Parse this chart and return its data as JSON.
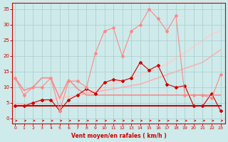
{
  "bg_color": "#ceeaea",
  "grid_color": "#aacccc",
  "xlabel": "Vent moyen/en rafales ( km/h )",
  "xlabel_color": "#cc0000",
  "ylabel_color": "#cc0000",
  "x_ticks": [
    0,
    1,
    2,
    3,
    4,
    5,
    6,
    7,
    8,
    9,
    10,
    11,
    12,
    13,
    14,
    15,
    16,
    17,
    18,
    19,
    20,
    21,
    22,
    23
  ],
  "y_ticks": [
    0,
    5,
    10,
    15,
    20,
    25,
    30,
    35
  ],
  "xlim": [
    -0.3,
    23.5
  ],
  "ylim": [
    -1.5,
    37
  ],
  "lines": [
    {
      "x": [
        0,
        1,
        2,
        3,
        4,
        5,
        6,
        7,
        8,
        9,
        10,
        11,
        12,
        13,
        14,
        15,
        16,
        17,
        18,
        19,
        20,
        21,
        22,
        23
      ],
      "y": [
        4.5,
        4.5,
        5,
        5.5,
        6,
        6.5,
        7,
        7.5,
        8,
        8.5,
        9,
        9.5,
        10,
        10.5,
        11,
        12,
        13,
        14,
        15,
        16,
        17,
        18,
        20,
        22
      ],
      "color": "#ffb0b0",
      "lw": 1.2,
      "marker": null,
      "zorder": 1
    },
    {
      "x": [
        0,
        1,
        2,
        3,
        4,
        5,
        6,
        7,
        8,
        9,
        10,
        11,
        12,
        13,
        14,
        15,
        16,
        17,
        18,
        19,
        20,
        21,
        22,
        23
      ],
      "y": [
        4.5,
        4.5,
        5,
        5.5,
        6,
        6.5,
        7,
        7.5,
        8.5,
        9,
        10,
        11,
        12,
        13,
        14,
        15,
        16,
        17.5,
        19.5,
        21,
        23,
        25,
        27,
        28
      ],
      "color": "#ffcccc",
      "lw": 1.2,
      "marker": null,
      "zorder": 1
    },
    {
      "x": [
        0,
        1,
        2,
        3,
        4,
        5,
        6,
        7,
        8,
        9,
        10,
        11,
        12,
        13,
        14,
        15,
        16,
        17,
        18,
        19,
        20,
        21,
        22,
        23
      ],
      "y": [
        4,
        4,
        4,
        4,
        4,
        4,
        4,
        4,
        4,
        4,
        4,
        4,
        4,
        4,
        4,
        4,
        4,
        4,
        4,
        4,
        4,
        4,
        4,
        4
      ],
      "color": "#cc0000",
      "lw": 1.5,
      "marker": null,
      "zorder": 3
    },
    {
      "x": [
        0,
        1,
        2,
        3,
        4,
        5,
        6,
        7,
        8,
        9,
        10,
        11,
        12,
        13,
        14,
        15,
        16,
        17,
        18,
        19,
        20,
        21,
        22,
        23
      ],
      "y": [
        4,
        4,
        5,
        6,
        6,
        2.5,
        6,
        7.5,
        9.5,
        8,
        11.5,
        12.5,
        12,
        13,
        18,
        15.5,
        17,
        11,
        10,
        10.5,
        4,
        4,
        8,
        2.5
      ],
      "color": "#cc0000",
      "lw": 0.8,
      "marker": "D",
      "markersize": 2.0,
      "zorder": 4
    },
    {
      "x": [
        0,
        1,
        2,
        3,
        4,
        5,
        6,
        7,
        8,
        9,
        10,
        11,
        12,
        13,
        14,
        15,
        16,
        17,
        18,
        19,
        20,
        21,
        22,
        23
      ],
      "y": [
        13,
        9,
        10,
        13,
        13,
        6.5,
        12.5,
        9.5,
        7.5,
        7.5,
        7.5,
        7.5,
        7.5,
        7.5,
        7.5,
        7.5,
        7.5,
        7.5,
        7.5,
        7.5,
        7.5,
        7.5,
        7.5,
        7.5
      ],
      "color": "#ff8888",
      "lw": 1.2,
      "marker": null,
      "zorder": 2
    },
    {
      "x": [
        0,
        1,
        2,
        3,
        4,
        5,
        6,
        7,
        8,
        9,
        10,
        11,
        12,
        13,
        14,
        15,
        16,
        17,
        18,
        19,
        20,
        21,
        22,
        23
      ],
      "y": [
        13,
        7.5,
        10,
        10,
        13,
        2.5,
        12,
        12,
        10,
        21,
        28,
        29,
        20,
        28,
        30,
        35,
        32,
        28,
        33,
        7.5,
        7.5,
        7.5,
        6.5,
        14
      ],
      "color": "#ff8888",
      "lw": 0.8,
      "marker": "D",
      "markersize": 2.0,
      "zorder": 4
    }
  ]
}
